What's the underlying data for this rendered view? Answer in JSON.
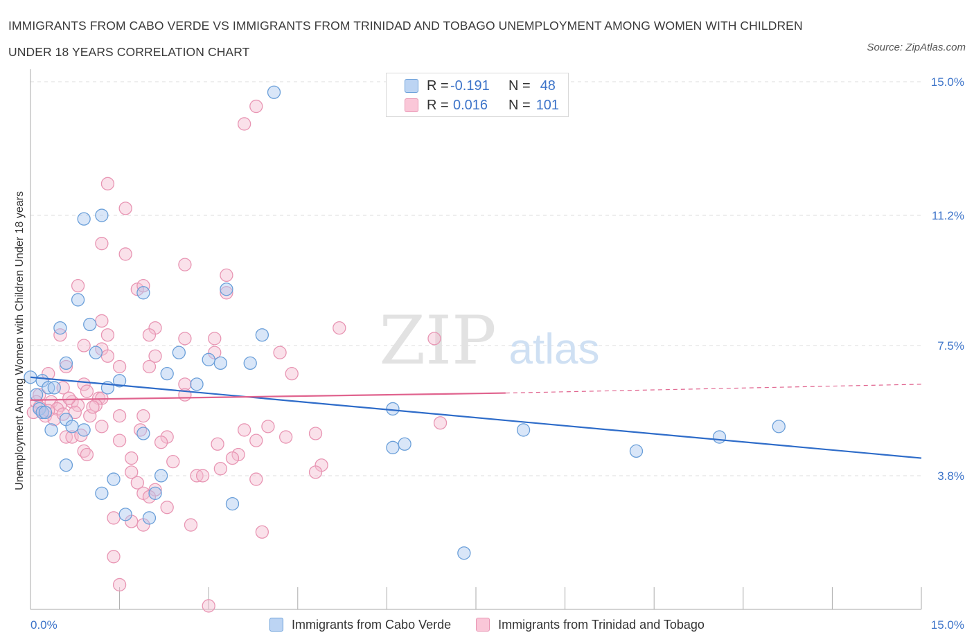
{
  "title": "IMMIGRANTS FROM CABO VERDE VS IMMIGRANTS FROM TRINIDAD AND TOBAGO UNEMPLOYMENT AMONG WOMEN WITH CHILDREN UNDER 18 YEARS CORRELATION CHART",
  "source": "Source: ZipAtlas.com",
  "watermark": {
    "zip": "ZIP",
    "atlas": "atlas"
  },
  "legend_top": {
    "rows": [
      {
        "r_label": "R =",
        "r_value": "-0.191",
        "n_label": "N =",
        "n_value": "48"
      },
      {
        "r_label": "R =",
        "r_value": "0.016",
        "n_label": "N =",
        "n_value": "101"
      }
    ]
  },
  "legend_bottom": {
    "items": [
      {
        "label": "Immigrants from Cabo Verde"
      },
      {
        "label": "Immigrants from Trinidad and Tobago"
      }
    ]
  },
  "colors": {
    "blue_fill": "#aac8ef",
    "blue_stroke": "#6a9fd9",
    "blue_line": "#2e6cc9",
    "pink_fill": "#f5bcd0",
    "pink_stroke": "#e895b3",
    "pink_line": "#e0638e",
    "axis_label": "#3d74c9",
    "grid": "#dddddd"
  },
  "chart_data": {
    "type": "scatter",
    "title": "IMMIGRANTS FROM CABO VERDE VS IMMIGRANTS FROM TRINIDAD AND TOBAGO UNEMPLOYMENT AMONG WOMEN WITH CHILDREN UNDER 18 YEARS CORRELATION CHART",
    "xlabel": "",
    "ylabel": "Unemployment Among Women with Children Under 18 years",
    "xlim": [
      0,
      15
    ],
    "ylim": [
      0,
      15
    ],
    "x_tick_labels": [
      "0.0%",
      "15.0%"
    ],
    "y_ticks": [
      3.8,
      7.5,
      11.2,
      15.0
    ],
    "y_tick_labels": [
      "3.8%",
      "7.5%",
      "11.2%",
      "15.0%"
    ],
    "grid": true,
    "legend_position": "top-center",
    "series": [
      {
        "name": "Immigrants from Cabo Verde",
        "color": "blue",
        "trend": {
          "x": [
            0,
            15
          ],
          "y": [
            6.6,
            4.3
          ]
        },
        "points": [
          [
            4.1,
            14.7
          ],
          [
            0.9,
            11.1
          ],
          [
            1.2,
            11.2
          ],
          [
            3.3,
            9.1
          ],
          [
            1.9,
            9.0
          ],
          [
            0.8,
            8.8
          ],
          [
            0.5,
            8.0
          ],
          [
            1.0,
            8.1
          ],
          [
            3.9,
            7.8
          ],
          [
            0.6,
            7.0
          ],
          [
            1.1,
            7.3
          ],
          [
            2.5,
            7.3
          ],
          [
            3.0,
            7.1
          ],
          [
            3.2,
            7.0
          ],
          [
            3.7,
            7.0
          ],
          [
            2.3,
            6.7
          ],
          [
            1.5,
            6.5
          ],
          [
            2.8,
            6.4
          ],
          [
            0.2,
            6.5
          ],
          [
            0.0,
            6.6
          ],
          [
            0.3,
            6.3
          ],
          [
            0.4,
            6.3
          ],
          [
            1.3,
            6.3
          ],
          [
            0.1,
            6.1
          ],
          [
            0.15,
            5.7
          ],
          [
            0.2,
            5.6
          ],
          [
            0.25,
            5.6
          ],
          [
            0.6,
            5.4
          ],
          [
            0.7,
            5.2
          ],
          [
            0.9,
            5.1
          ],
          [
            0.35,
            5.1
          ],
          [
            1.9,
            5.0
          ],
          [
            6.1,
            5.7
          ],
          [
            6.1,
            4.6
          ],
          [
            6.3,
            4.7
          ],
          [
            8.3,
            5.1
          ],
          [
            11.6,
            4.9
          ],
          [
            12.6,
            5.2
          ],
          [
            10.2,
            4.5
          ],
          [
            0.6,
            4.1
          ],
          [
            1.4,
            3.7
          ],
          [
            2.2,
            3.8
          ],
          [
            2.1,
            3.3
          ],
          [
            1.2,
            3.3
          ],
          [
            3.4,
            3.0
          ],
          [
            1.6,
            2.7
          ],
          [
            2.0,
            2.6
          ],
          [
            7.3,
            1.6
          ]
        ]
      },
      {
        "name": "Immigrants from Trinidad and Tobago",
        "color": "pink",
        "trend": {
          "x": [
            0,
            8
          ],
          "y": [
            5.95,
            6.15
          ]
        },
        "trend_dashed": {
          "x": [
            8,
            15
          ],
          "y": [
            6.15,
            6.4
          ]
        },
        "points": [
          [
            3.8,
            14.3
          ],
          [
            3.6,
            13.8
          ],
          [
            1.3,
            12.1
          ],
          [
            1.6,
            11.4
          ],
          [
            1.2,
            10.4
          ],
          [
            1.6,
            10.1
          ],
          [
            2.6,
            9.8
          ],
          [
            3.3,
            9.5
          ],
          [
            0.8,
            9.2
          ],
          [
            1.8,
            9.1
          ],
          [
            1.9,
            9.2
          ],
          [
            3.3,
            9.0
          ],
          [
            1.2,
            8.2
          ],
          [
            2.1,
            8.0
          ],
          [
            5.2,
            8.0
          ],
          [
            0.5,
            7.8
          ],
          [
            1.3,
            7.8
          ],
          [
            2.0,
            7.8
          ],
          [
            2.6,
            7.7
          ],
          [
            3.1,
            7.7
          ],
          [
            6.8,
            7.7
          ],
          [
            0.9,
            7.5
          ],
          [
            1.2,
            7.4
          ],
          [
            1.3,
            7.2
          ],
          [
            2.1,
            7.2
          ],
          [
            3.1,
            7.3
          ],
          [
            4.2,
            7.3
          ],
          [
            1.5,
            6.9
          ],
          [
            2.0,
            6.9
          ],
          [
            4.4,
            6.7
          ],
          [
            0.6,
            6.9
          ],
          [
            0.3,
            6.7
          ],
          [
            0.55,
            6.3
          ],
          [
            0.9,
            6.4
          ],
          [
            1.15,
            6.0
          ],
          [
            2.6,
            6.4
          ],
          [
            0.95,
            6.2
          ],
          [
            1.2,
            6.0
          ],
          [
            2.6,
            6.1
          ],
          [
            0.15,
            6.1
          ],
          [
            0.1,
            5.9
          ],
          [
            0.35,
            5.9
          ],
          [
            0.5,
            5.8
          ],
          [
            0.7,
            5.9
          ],
          [
            0.8,
            5.8
          ],
          [
            1.1,
            5.8
          ],
          [
            0.05,
            5.6
          ],
          [
            0.2,
            5.6
          ],
          [
            0.45,
            5.7
          ],
          [
            0.75,
            5.6
          ],
          [
            1.0,
            5.5
          ],
          [
            1.5,
            5.5
          ],
          [
            1.9,
            5.5
          ],
          [
            0.25,
            5.5
          ],
          [
            0.4,
            5.4
          ],
          [
            1.2,
            5.2
          ],
          [
            1.85,
            5.1
          ],
          [
            3.6,
            5.1
          ],
          [
            4.8,
            5.0
          ],
          [
            6.9,
            5.3
          ],
          [
            0.6,
            4.9
          ],
          [
            0.7,
            4.9
          ],
          [
            1.5,
            4.8
          ],
          [
            2.3,
            4.9
          ],
          [
            3.8,
            4.8
          ],
          [
            4.3,
            4.9
          ],
          [
            0.9,
            4.5
          ],
          [
            0.95,
            4.4
          ],
          [
            1.7,
            4.3
          ],
          [
            2.4,
            4.2
          ],
          [
            3.5,
            4.4
          ],
          [
            3.4,
            4.3
          ],
          [
            4.9,
            4.1
          ],
          [
            4.8,
            3.9
          ],
          [
            1.7,
            3.9
          ],
          [
            2.8,
            3.8
          ],
          [
            2.9,
            3.8
          ],
          [
            3.2,
            4.0
          ],
          [
            3.8,
            3.7
          ],
          [
            1.8,
            3.6
          ],
          [
            2.1,
            3.4
          ],
          [
            1.9,
            3.3
          ],
          [
            2.0,
            3.2
          ],
          [
            2.3,
            2.9
          ],
          [
            1.4,
            2.6
          ],
          [
            1.7,
            2.5
          ],
          [
            1.9,
            2.4
          ],
          [
            2.7,
            2.4
          ],
          [
            3.9,
            2.2
          ],
          [
            1.4,
            1.5
          ],
          [
            1.5,
            0.7
          ],
          [
            3.0,
            0.1
          ],
          [
            0.15,
            5.75
          ],
          [
            0.3,
            5.65
          ],
          [
            0.55,
            5.55
          ],
          [
            1.05,
            5.75
          ],
          [
            2.2,
            4.75
          ],
          [
            3.15,
            4.7
          ],
          [
            4.0,
            5.2
          ],
          [
            0.65,
            6.0
          ],
          [
            0.85,
            4.95
          ]
        ]
      }
    ]
  }
}
